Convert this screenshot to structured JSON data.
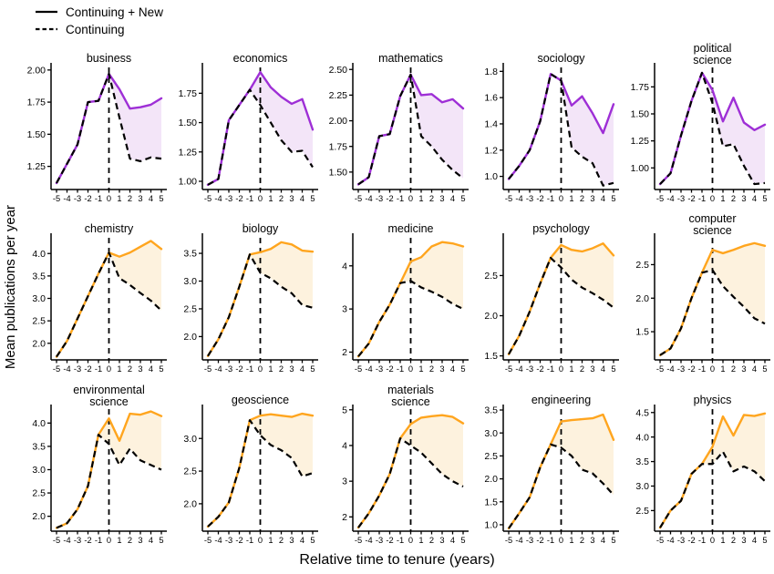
{
  "legend": {
    "items": [
      {
        "label": "Continuing + New",
        "style": "solid"
      },
      {
        "label": "Continuing",
        "style": "dashed"
      }
    ]
  },
  "axes": {
    "x_label": "Relative time to tenure (years)",
    "y_label": "Mean publications per year",
    "x_values": [
      -5,
      -4,
      -3,
      -2,
      -1,
      0,
      1,
      2,
      3,
      4,
      5
    ],
    "x_tick_labels": [
      "-5",
      "-4",
      "-3",
      "-2",
      "-1",
      "0",
      "1",
      "2",
      "3",
      "4",
      "5"
    ],
    "tenure_marker_x": 0
  },
  "colors": {
    "purple_line": "#9E2FD6",
    "purple_fill": "#F3E5F8",
    "orange_line": "#FFA51E",
    "orange_fill": "#FDF2DE",
    "dashed_line": "#000000",
    "axis": "#000000"
  },
  "chart_data": [
    {
      "id": "business",
      "type": "line",
      "title_lines": [
        "business"
      ],
      "color": "purple",
      "ylim": [
        1.07,
        2.02
      ],
      "yticks": [
        1.25,
        1.5,
        1.75,
        2.0
      ],
      "ytick_labels": [
        "1.25",
        "1.50",
        "1.75",
        "2.00"
      ],
      "series": [
        {
          "name": "Continuing + New",
          "values": [
            1.12,
            1.27,
            1.42,
            1.75,
            1.76,
            1.97,
            1.85,
            1.7,
            1.71,
            1.73,
            1.78
          ]
        },
        {
          "name": "Continuing",
          "values": [
            1.12,
            1.27,
            1.42,
            1.75,
            1.76,
            1.97,
            1.63,
            1.31,
            1.29,
            1.32,
            1.31
          ]
        }
      ]
    },
    {
      "id": "economics",
      "type": "line",
      "title_lines": [
        "economics"
      ],
      "color": "purple",
      "ylim": [
        0.93,
        1.97
      ],
      "yticks": [
        1.0,
        1.25,
        1.5,
        1.75
      ],
      "ytick_labels": [
        "1.00",
        "1.25",
        "1.50",
        "1.75"
      ],
      "series": [
        {
          "name": "Continuing + New",
          "values": [
            0.97,
            1.02,
            1.52,
            1.65,
            1.78,
            1.93,
            1.8,
            1.72,
            1.66,
            1.7,
            1.44
          ]
        },
        {
          "name": "Continuing",
          "values": [
            0.97,
            1.02,
            1.52,
            1.65,
            1.78,
            1.65,
            1.5,
            1.35,
            1.25,
            1.26,
            1.12
          ]
        }
      ]
    },
    {
      "id": "mathematics",
      "type": "line",
      "title_lines": [
        "mathematics"
      ],
      "color": "purple",
      "ylim": [
        1.33,
        2.52
      ],
      "yticks": [
        1.5,
        1.75,
        2.0,
        2.25,
        2.5
      ],
      "ytick_labels": [
        "1.50",
        "1.75",
        "2.00",
        "2.25",
        "2.50"
      ],
      "series": [
        {
          "name": "Continuing + New",
          "values": [
            1.38,
            1.45,
            1.85,
            1.87,
            2.24,
            2.45,
            2.25,
            2.26,
            2.18,
            2.21,
            2.12
          ]
        },
        {
          "name": "Continuing",
          "values": [
            1.38,
            1.45,
            1.85,
            1.87,
            2.24,
            2.45,
            1.85,
            1.75,
            1.62,
            1.52,
            1.44
          ]
        }
      ]
    },
    {
      "id": "sociology",
      "type": "line",
      "title_lines": [
        "sociology"
      ],
      "color": "purple",
      "ylim": [
        0.9,
        1.83
      ],
      "yticks": [
        1.0,
        1.2,
        1.4,
        1.6,
        1.8
      ],
      "ytick_labels": [
        "1.0",
        "1.2",
        "1.4",
        "1.6",
        "1.8"
      ],
      "series": [
        {
          "name": "Continuing + New",
          "values": [
            0.98,
            1.08,
            1.2,
            1.42,
            1.78,
            1.73,
            1.54,
            1.61,
            1.48,
            1.33,
            1.55
          ]
        },
        {
          "name": "Continuing",
          "values": [
            0.98,
            1.08,
            1.2,
            1.42,
            1.78,
            1.73,
            1.22,
            1.15,
            1.1,
            0.93,
            0.95
          ]
        }
      ]
    },
    {
      "id": "political-science",
      "type": "line",
      "title_lines": [
        "political",
        "science"
      ],
      "color": "purple",
      "ylim": [
        0.8,
        1.93
      ],
      "yticks": [
        1.0,
        1.25,
        1.5,
        1.75
      ],
      "ytick_labels": [
        "1.00",
        "1.25",
        "1.50",
        "1.75"
      ],
      "series": [
        {
          "name": "Continuing + New",
          "values": [
            0.85,
            0.95,
            1.3,
            1.62,
            1.88,
            1.72,
            1.43,
            1.65,
            1.42,
            1.35,
            1.4
          ]
        },
        {
          "name": "Continuing",
          "values": [
            0.85,
            0.95,
            1.3,
            1.62,
            1.88,
            1.6,
            1.2,
            1.22,
            1.02,
            0.85,
            0.86
          ]
        }
      ]
    },
    {
      "id": "chemistry",
      "type": "line",
      "title_lines": [
        "chemistry"
      ],
      "color": "orange",
      "ylim": [
        1.63,
        4.35
      ],
      "yticks": [
        2.0,
        2.5,
        3.0,
        3.5,
        4.0
      ],
      "ytick_labels": [
        "2.0",
        "2.5",
        "3.0",
        "3.5",
        "4.0"
      ],
      "series": [
        {
          "name": "Continuing + New",
          "values": [
            1.7,
            2.05,
            2.55,
            3.05,
            3.55,
            4.02,
            3.93,
            4.02,
            4.15,
            4.28,
            4.1
          ]
        },
        {
          "name": "Continuing",
          "values": [
            1.7,
            2.05,
            2.55,
            3.05,
            3.55,
            4.02,
            3.45,
            3.3,
            3.12,
            2.95,
            2.73
          ]
        }
      ]
    },
    {
      "id": "biology",
      "type": "line",
      "title_lines": [
        "biology"
      ],
      "color": "orange",
      "ylim": [
        1.58,
        3.78
      ],
      "yticks": [
        2.0,
        2.5,
        3.0,
        3.5
      ],
      "ytick_labels": [
        "2.0",
        "2.5",
        "3.0",
        "3.5"
      ],
      "series": [
        {
          "name": "Continuing + New",
          "values": [
            1.65,
            1.95,
            2.35,
            2.9,
            3.48,
            3.52,
            3.58,
            3.7,
            3.66,
            3.55,
            3.53
          ]
        },
        {
          "name": "Continuing",
          "values": [
            1.65,
            1.95,
            2.35,
            2.9,
            3.48,
            3.15,
            3.05,
            2.9,
            2.78,
            2.57,
            2.52
          ]
        }
      ]
    },
    {
      "id": "medicine",
      "type": "line",
      "title_lines": [
        "medicine"
      ],
      "color": "orange",
      "ylim": [
        1.82,
        4.65
      ],
      "yticks": [
        2,
        3,
        4
      ],
      "ytick_labels": [
        "2",
        "3",
        "4"
      ],
      "series": [
        {
          "name": "Continuing + New",
          "values": [
            1.9,
            2.2,
            2.7,
            3.1,
            3.6,
            4.1,
            4.2,
            4.45,
            4.55,
            4.52,
            4.45
          ]
        },
        {
          "name": "Continuing",
          "values": [
            1.9,
            2.2,
            2.7,
            3.1,
            3.6,
            3.65,
            3.5,
            3.4,
            3.28,
            3.12,
            3.0
          ]
        }
      ]
    },
    {
      "id": "psychology",
      "type": "line",
      "title_lines": [
        "psychology"
      ],
      "color": "orange",
      "ylim": [
        1.45,
        2.97
      ],
      "yticks": [
        1.5,
        2.0,
        2.5
      ],
      "ytick_labels": [
        "1.5",
        "2.0",
        "2.5"
      ],
      "series": [
        {
          "name": "Continuing + New",
          "values": [
            1.52,
            1.75,
            2.05,
            2.4,
            2.72,
            2.88,
            2.82,
            2.8,
            2.84,
            2.9,
            2.75
          ]
        },
        {
          "name": "Continuing",
          "values": [
            1.52,
            1.75,
            2.05,
            2.4,
            2.72,
            2.6,
            2.45,
            2.35,
            2.28,
            2.2,
            2.1
          ]
        }
      ]
    },
    {
      "id": "computer-science",
      "type": "line",
      "title_lines": [
        "computer",
        "science"
      ],
      "color": "orange",
      "ylim": [
        1.08,
        2.9
      ],
      "yticks": [
        1.5,
        2.0,
        2.5
      ],
      "ytick_labels": [
        "1.5",
        "2.0",
        "2.5"
      ],
      "series": [
        {
          "name": "Continuing + New",
          "values": [
            1.15,
            1.25,
            1.55,
            2.0,
            2.38,
            2.72,
            2.67,
            2.72,
            2.78,
            2.82,
            2.78
          ]
        },
        {
          "name": "Continuing",
          "values": [
            1.15,
            1.25,
            1.55,
            2.0,
            2.38,
            2.42,
            2.18,
            2.02,
            1.87,
            1.7,
            1.62
          ]
        }
      ]
    },
    {
      "id": "environmental-science",
      "type": "line",
      "title_lines": [
        "environmental",
        "science"
      ],
      "color": "orange",
      "ylim": [
        1.68,
        4.3
      ],
      "yticks": [
        2.0,
        2.5,
        3.0,
        3.5,
        4.0
      ],
      "ytick_labels": [
        "2.0",
        "2.5",
        "3.0",
        "3.5",
        "4.0"
      ],
      "series": [
        {
          "name": "Continuing + New",
          "values": [
            1.75,
            1.85,
            2.15,
            2.65,
            3.75,
            4.1,
            3.62,
            4.2,
            4.18,
            4.25,
            4.15
          ]
        },
        {
          "name": "Continuing",
          "values": [
            1.75,
            1.85,
            2.15,
            2.65,
            3.75,
            3.55,
            3.1,
            3.45,
            3.2,
            3.1,
            3.0
          ]
        }
      ]
    },
    {
      "id": "geoscience",
      "type": "line",
      "title_lines": [
        "geoscience"
      ],
      "color": "orange",
      "ylim": [
        1.58,
        3.45
      ],
      "yticks": [
        2.0,
        2.5,
        3.0
      ],
      "ytick_labels": [
        "2.0",
        "2.5",
        "3.0"
      ],
      "series": [
        {
          "name": "Continuing + New",
          "values": [
            1.65,
            1.8,
            2.02,
            2.55,
            3.28,
            3.35,
            3.37,
            3.35,
            3.33,
            3.38,
            3.35
          ]
        },
        {
          "name": "Continuing",
          "values": [
            1.65,
            1.8,
            2.02,
            2.55,
            3.28,
            3.05,
            2.9,
            2.82,
            2.7,
            2.42,
            2.47
          ]
        }
      ]
    },
    {
      "id": "materials-science",
      "type": "line",
      "title_lines": [
        "materials",
        "science"
      ],
      "color": "orange",
      "ylim": [
        1.6,
        5.02
      ],
      "yticks": [
        2,
        3,
        4,
        5
      ],
      "ytick_labels": [
        "2",
        "3",
        "4",
        "5"
      ],
      "series": [
        {
          "name": "Continuing + New",
          "values": [
            1.7,
            2.1,
            2.6,
            3.2,
            4.2,
            4.6,
            4.78,
            4.82,
            4.85,
            4.8,
            4.62
          ]
        },
        {
          "name": "Continuing",
          "values": [
            1.7,
            2.1,
            2.6,
            3.2,
            4.2,
            4.0,
            3.8,
            3.5,
            3.2,
            3.0,
            2.85
          ]
        }
      ]
    },
    {
      "id": "engineering",
      "type": "line",
      "title_lines": [
        "engineering"
      ],
      "color": "orange",
      "ylim": [
        0.86,
        3.52
      ],
      "yticks": [
        1.0,
        1.5,
        2.0,
        2.5,
        3.0,
        3.5
      ],
      "ytick_labels": [
        "1.0",
        "1.5",
        "2.0",
        "2.5",
        "3.0",
        "3.5"
      ],
      "series": [
        {
          "name": "Continuing + New",
          "values": [
            0.92,
            1.25,
            1.6,
            2.25,
            2.75,
            3.25,
            3.28,
            3.3,
            3.32,
            3.4,
            2.85
          ]
        },
        {
          "name": "Continuing",
          "values": [
            0.92,
            1.25,
            1.6,
            2.25,
            2.75,
            2.68,
            2.5,
            2.2,
            2.12,
            1.9,
            1.65
          ]
        }
      ]
    },
    {
      "id": "physics",
      "type": "line",
      "title_lines": [
        "physics"
      ],
      "color": "orange",
      "ylim": [
        2.08,
        4.57
      ],
      "yticks": [
        2.5,
        3.0,
        3.5,
        4.0,
        4.5
      ],
      "ytick_labels": [
        "2.5",
        "3.0",
        "3.5",
        "4.0",
        "4.5"
      ],
      "series": [
        {
          "name": "Continuing + New",
          "values": [
            2.15,
            2.5,
            2.7,
            3.25,
            3.45,
            3.8,
            4.42,
            4.03,
            4.45,
            4.43,
            4.48
          ]
        },
        {
          "name": "Continuing",
          "values": [
            2.15,
            2.5,
            2.7,
            3.25,
            3.45,
            3.45,
            3.7,
            3.3,
            3.4,
            3.3,
            3.1
          ]
        }
      ]
    }
  ]
}
